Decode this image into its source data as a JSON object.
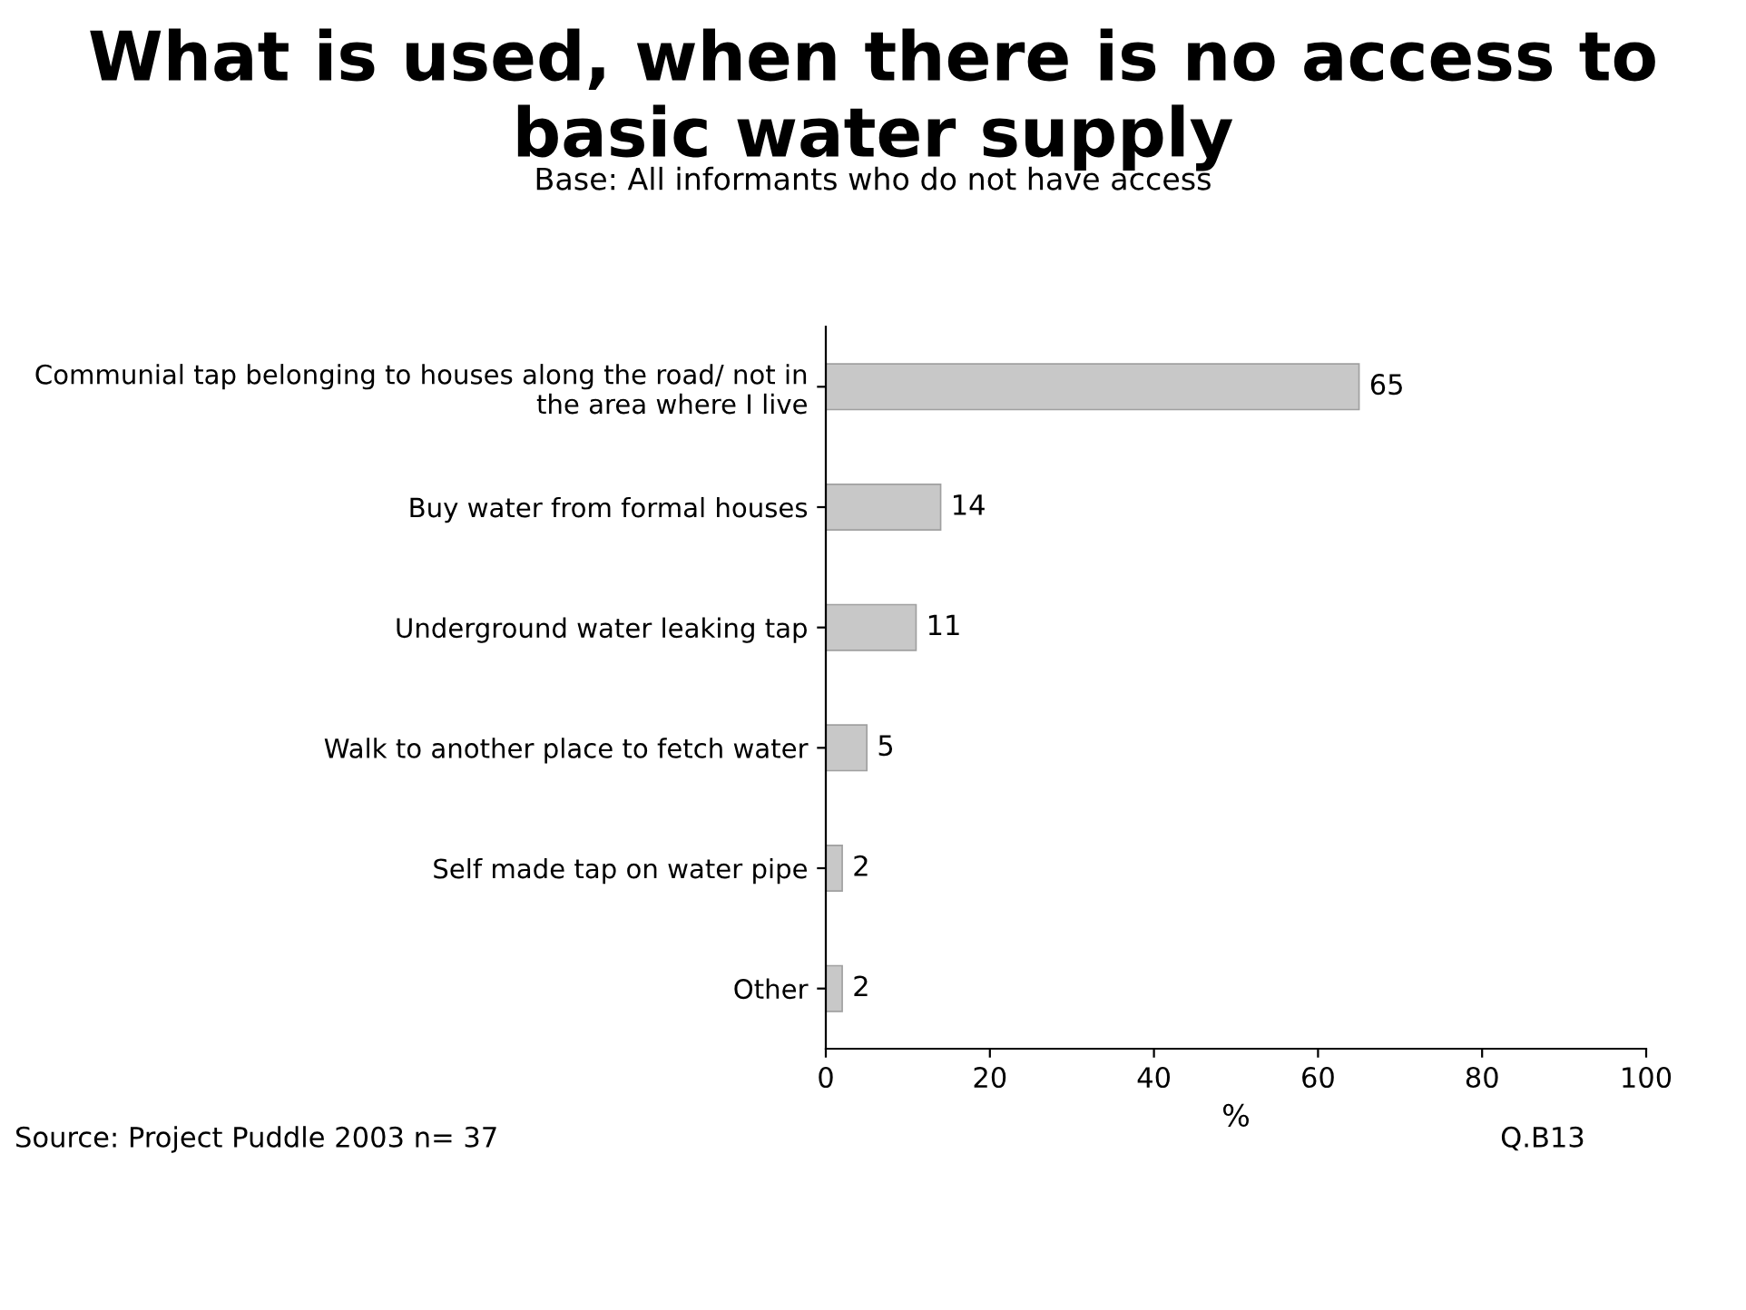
{
  "chart_data": {
    "type": "bar",
    "orientation": "horizontal",
    "title": "What is used, when there is no access to basic water supply",
    "subtitle": "Base: All informants who do not have access",
    "categories": [
      "Communial tap belonging to houses along the road/ not in the area where I live",
      "Buy water from formal houses",
      "Underground water leaking tap",
      "Walk to another place to fetch water",
      "Self made tap on water pipe",
      "Other"
    ],
    "values": [
      65,
      14,
      11,
      5,
      2,
      2
    ],
    "color": "#c8c8c8",
    "data_labels": true,
    "xlabel": "%",
    "xlim": [
      0,
      100
    ],
    "xticks": [
      0,
      20,
      40,
      60,
      80,
      100
    ],
    "grid": false,
    "annotations": [
      "Source: Project Puddle 2003 n= 37",
      "Q.B13"
    ]
  }
}
